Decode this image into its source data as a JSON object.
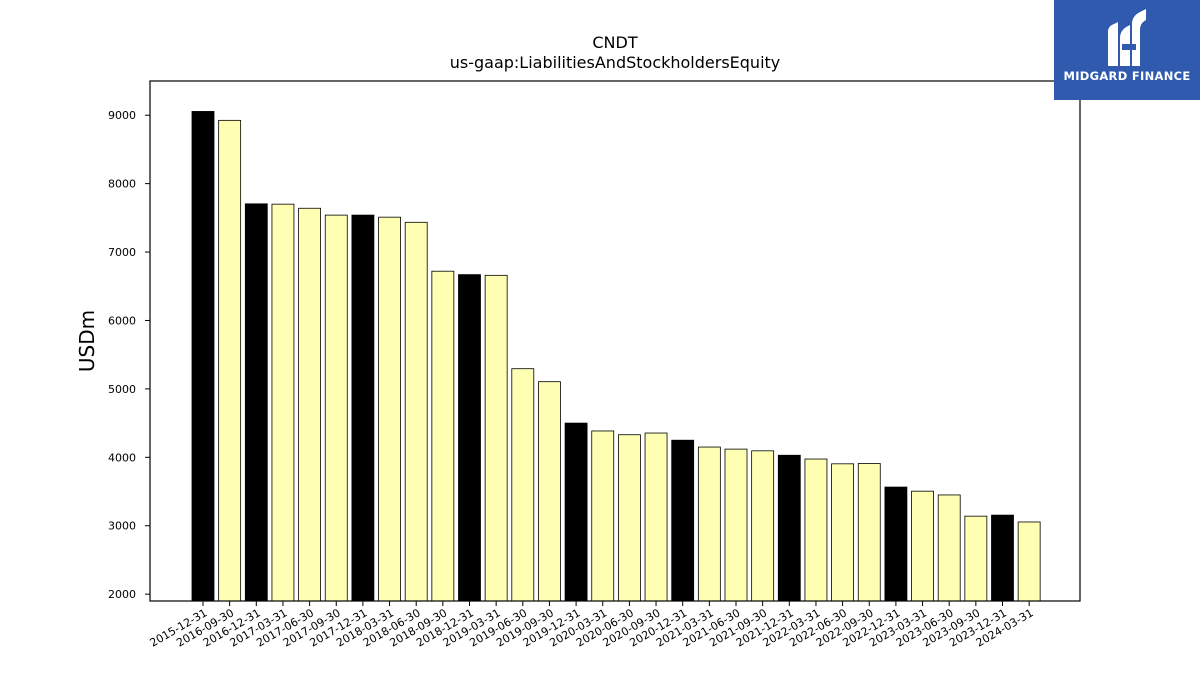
{
  "chart_data": {
    "type": "bar",
    "title": "CNDT",
    "subtitle": "us-gaap:LiabilitiesAndStockholdersEquity",
    "ylabel": "USDm",
    "xlabel": "",
    "ylim": [
      1900,
      9500
    ],
    "yticks": [
      2000,
      3000,
      4000,
      5000,
      6000,
      7000,
      8000,
      9000
    ],
    "grid": false,
    "categories": [
      "2015-12-31",
      "2016-09-30",
      "2016-12-31",
      "2017-03-31",
      "2017-06-30",
      "2017-09-30",
      "2017-12-31",
      "2018-03-31",
      "2018-06-30",
      "2018-09-30",
      "2018-12-31",
      "2019-03-31",
      "2019-06-30",
      "2019-09-30",
      "2019-12-31",
      "2020-03-31",
      "2020-06-30",
      "2020-09-30",
      "2020-12-31",
      "2021-03-31",
      "2021-06-30",
      "2021-09-30",
      "2021-12-31",
      "2022-03-31",
      "2022-06-30",
      "2022-09-30",
      "2022-12-31",
      "2023-03-31",
      "2023-06-30",
      "2023-09-30",
      "2023-12-31",
      "2024-03-31"
    ],
    "values": [
      9055,
      8925,
      7705,
      7700,
      7640,
      7540,
      7540,
      7510,
      7435,
      6720,
      6670,
      6660,
      5295,
      5105,
      4500,
      4385,
      4330,
      4355,
      4250,
      4150,
      4120,
      4095,
      4030,
      3975,
      3905,
      3910,
      3565,
      3505,
      3450,
      3140,
      3155,
      3055
    ],
    "bar_colors": [
      "#000000",
      "#ffffb3",
      "#000000",
      "#ffffb3",
      "#ffffb3",
      "#ffffb3",
      "#000000",
      "#ffffb3",
      "#ffffb3",
      "#ffffb3",
      "#000000",
      "#ffffb3",
      "#ffffb3",
      "#ffffb3",
      "#000000",
      "#ffffb3",
      "#ffffb3",
      "#ffffb3",
      "#000000",
      "#ffffb3",
      "#ffffb3",
      "#ffffb3",
      "#000000",
      "#ffffb3",
      "#ffffb3",
      "#ffffb3",
      "#000000",
      "#ffffb3",
      "#ffffb3",
      "#ffffb3",
      "#000000",
      "#ffffb3"
    ],
    "edge_color": "#000000"
  },
  "logo": {
    "text": "MIDGARD FINANCE",
    "background": "#2f5aad",
    "icon": "midgard-m-logo-icon"
  }
}
